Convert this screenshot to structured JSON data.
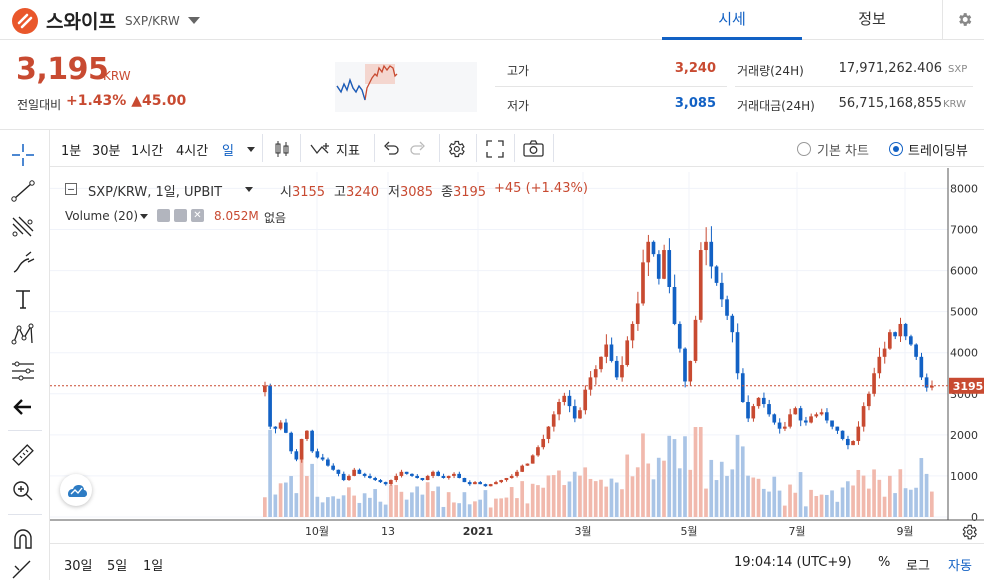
{
  "header": {
    "coin_name": "스와이프",
    "pair": "SXP/KRW",
    "tabs": [
      "시세",
      "정보"
    ],
    "active_tab": 0
  },
  "price": {
    "current": "3,195",
    "unit": "KRW",
    "change_label": "전일대비",
    "change_pct": "+1.43%",
    "change_abs": "▲45.00"
  },
  "stats": {
    "high_label": "고가",
    "high_value": "3,240",
    "low_label": "저가",
    "low_value": "3,085",
    "volume_label": "거래량(24H)",
    "volume_value": "17,971,262.406",
    "volume_unit": "SXP",
    "amount_label": "거래대금(24H)",
    "amount_value": "56,715,168,855",
    "amount_unit": "KRW"
  },
  "toolbar": {
    "intervals": [
      "1분",
      "30분",
      "1시간",
      "4시간",
      "일"
    ],
    "active_interval": "일",
    "indicators_label": "지표",
    "basic_chart_label": "기본 차트",
    "trading_view_label": "트레이딩뷰"
  },
  "legend": {
    "symbol": "SXP/KRW, 1일, UPBIT",
    "open_label": "시",
    "open": "3155",
    "high_label": "고",
    "high": "3240",
    "low_label": "저",
    "low": "3085",
    "close_label": "종",
    "close": "3195",
    "change": "+45 (+1.43%)",
    "volume_label": "Volume (20)",
    "volume_value": "8.052M",
    "volume_ma": "없음"
  },
  "bottom": {
    "ranges": [
      "30일",
      "5일",
      "1일"
    ],
    "time": "19:04:14 (UTC+9)",
    "pct_label": "%",
    "log_label": "로그",
    "auto_label": "자동"
  },
  "colors": {
    "up": "#c84a31",
    "down": "#1261c4",
    "accent": "#1261c4"
  },
  "chart_data": {
    "type": "candlestick",
    "y_axis_ticks": [
      0,
      1000,
      2000,
      3000,
      4000,
      5000,
      6000,
      7000,
      8000
    ],
    "x_axis_ticks": [
      "10월",
      "13",
      "2021",
      "3월",
      "5월",
      "7월",
      "9월"
    ],
    "last_price_label": "3195",
    "ylim": [
      0,
      8400
    ],
    "series_close": [
      3200,
      2200,
      2150,
      2300,
      2050,
      1600,
      1400,
      1900,
      2100,
      1600,
      1450,
      1400,
      1250,
      1150,
      1050,
      900,
      1000,
      1150,
      1050,
      1000,
      950,
      900,
      850,
      800,
      900,
      1000,
      1100,
      1050,
      1000,
      950,
      900,
      1000,
      1100,
      1000,
      950,
      1000,
      1050,
      950,
      850,
      800,
      850,
      800,
      750,
      800,
      850,
      900,
      950,
      1000,
      1100,
      1250,
      1300,
      1500,
      1700,
      1900,
      2200,
      2500,
      2800,
      2950,
      2700,
      2400,
      2600,
      3100,
      3400,
      3600,
      3900,
      4200,
      3800,
      3400,
      3700,
      4300,
      4700,
      5200,
      6200,
      6700,
      6400,
      5800,
      6500,
      5600,
      4700,
      4100,
      3300,
      3800,
      4800,
      6500,
      6700,
      6100,
      5700,
      5300,
      4900,
      4500,
      3500,
      2800,
      2400,
      2700,
      2900,
      2750,
      2500,
      2300,
      2150,
      2200,
      2500,
      2650,
      2350,
      2300,
      2450,
      2500,
      2550,
      2350,
      2200,
      2100,
      1900,
      1750,
      1850,
      2200,
      2700,
      3000,
      3500,
      3900,
      4100,
      4500,
      4400,
      4700,
      4400,
      4200,
      3900,
      3400,
      3150,
      3195
    ]
  }
}
